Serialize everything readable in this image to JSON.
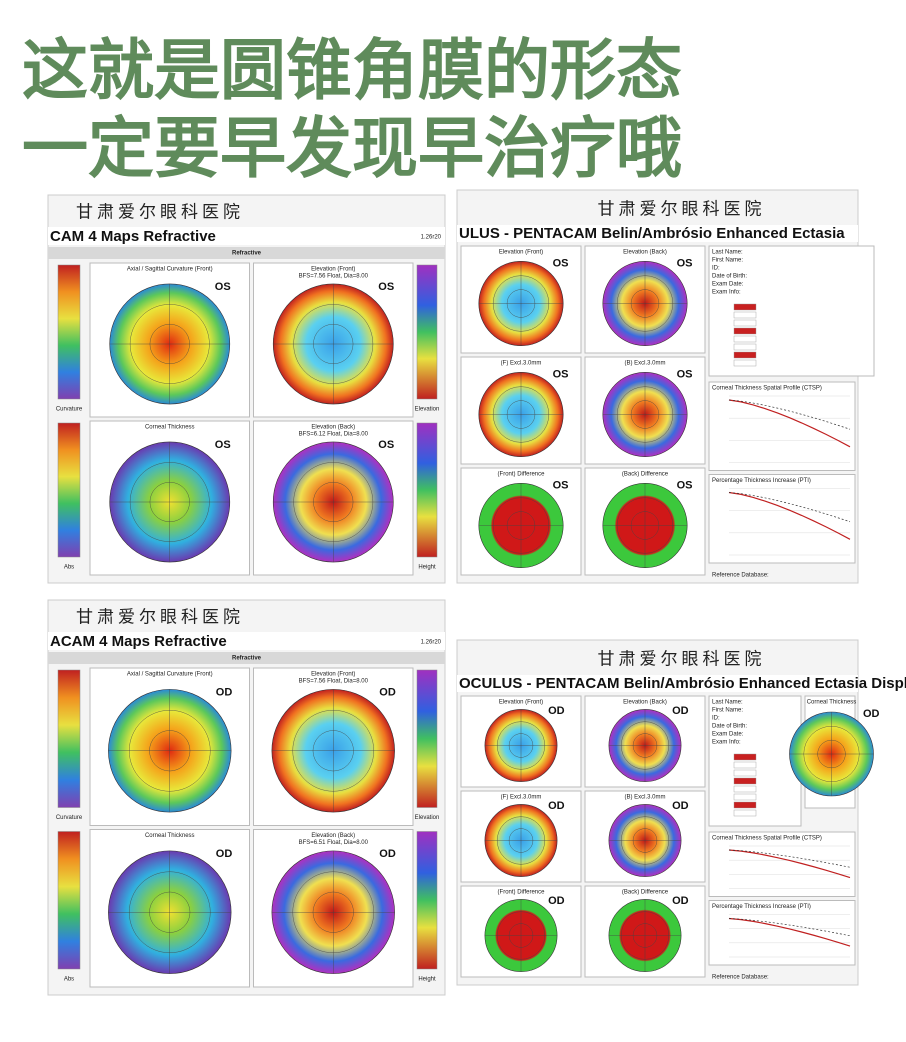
{
  "header": {
    "lines": [
      "这就是圆锥角膜的形态",
      "一定要早发现早治疗哦"
    ]
  },
  "panels": [
    {
      "kind": "four-maps",
      "hospital": "甘肃爱尔眼科医院",
      "title": "CAM   4 Maps Refractive",
      "version": "1.26r20",
      "section": "Refractive",
      "maps": [
        {
          "label": "Axial / Sagittal Curvature (Front)",
          "eye": "OS"
        },
        {
          "label": "Elevation (Front)",
          "sub": "BFS=7.56 Float, Dia=8.00",
          "eye": "OS"
        },
        {
          "label": "Corneal Thickness",
          "eye": "OS"
        },
        {
          "label": "Elevation (Back)",
          "sub": "BFS=6.12 Float, Dia=8.00",
          "eye": "OS"
        }
      ],
      "scales": [
        "Curvature",
        "Elevation",
        "Abs",
        "Height"
      ]
    },
    {
      "kind": "ectasia",
      "hospital": "甘肃爱尔眼科医院",
      "title": "ULUS  -  PENTACAM   Belin/Ambrósio Enhanced Ectasia",
      "maps": [
        {
          "label": "Elevation (Front)",
          "eye": "OS"
        },
        {
          "label": "Elevation (Back)",
          "eye": "OS"
        },
        {
          "label": "(F) Excl.3.0mm",
          "eye": "OS"
        },
        {
          "label": "(B) Excl.3.0mm",
          "eye": "OS"
        },
        {
          "label": "(Front) Difference",
          "eye": "OS"
        },
        {
          "label": "(Back) Difference",
          "eye": "OS"
        }
      ],
      "info": [
        "Last Name:",
        "First Name:",
        "ID:",
        "Date of Birth:",
        "Exam Date:",
        "Exam Info:"
      ],
      "graphs": [
        "Corneal Thickness Spatial Profile (CTSP)",
        "Percentage Thickness Increase (PTI)"
      ],
      "footer": "Reference Database:"
    },
    {
      "kind": "four-maps",
      "hospital": "甘肃爱尔眼科医院",
      "title": "ACAM   4 Maps Refractive",
      "version": "1.26r20",
      "section": "Refractive",
      "maps": [
        {
          "label": "Axial / Sagittal Curvature (Front)",
          "eye": "OD"
        },
        {
          "label": "Elevation (Front)",
          "sub": "BFS=7.56 Float, Dia=8.00",
          "eye": "OD"
        },
        {
          "label": "Corneal Thickness",
          "eye": "OD"
        },
        {
          "label": "Elevation (Back)",
          "sub": "BFS=6.51 Float, Dia=8.00",
          "eye": "OD"
        }
      ],
      "scales": [
        "Curvature",
        "Elevation",
        "Abs",
        "Height"
      ]
    },
    {
      "kind": "ectasia",
      "hospital": "甘肃爱尔眼科医院",
      "title": "OCULUS  -  PENTACAM   Belin/Ambrósio Enhanced Ectasia Display",
      "maps": [
        {
          "label": "Elevation (Front)",
          "eye": "OD"
        },
        {
          "label": "Elevation (Back)",
          "eye": "OD"
        },
        {
          "label": "(F) Excl.3.0mm",
          "eye": "OD"
        },
        {
          "label": "(B) Excl.3.0mm",
          "eye": "OD"
        },
        {
          "label": "(Front) Difference",
          "eye": "OD"
        },
        {
          "label": "(Back) Difference",
          "eye": "OD"
        }
      ],
      "info": [
        "Last Name:",
        "First Name:",
        "ID:",
        "Date of Birth:",
        "Exam Date:",
        "Exam Info:"
      ],
      "graphs": [
        "Corneal Thickness Spatial Profile (CTSP)",
        "Percentage Thickness Increase (PTI)"
      ],
      "footer": "Reference Database:",
      "extra_map": {
        "label": "Corneal Thickness",
        "eye": "OD"
      }
    }
  ]
}
